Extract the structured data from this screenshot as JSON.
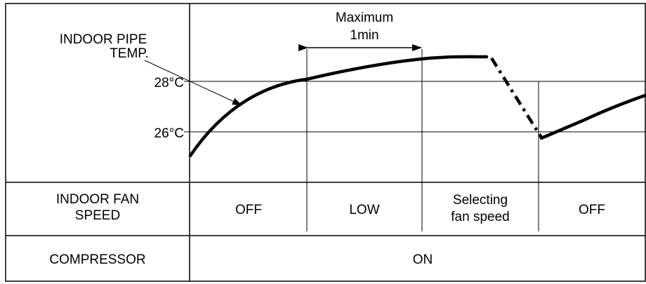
{
  "graph": {
    "pipe_temp_label_line1": "INDOOR PIPE",
    "pipe_temp_label_line2": "TEMP.",
    "temp_28": "28°C",
    "temp_26": "26°C",
    "max_label_line1": "Maximum",
    "max_label_line2": "1min"
  },
  "fan_row": {
    "label_line1": "INDOOR FAN",
    "label_line2": "SPEED",
    "states": [
      {
        "line1": "OFF",
        "line2": ""
      },
      {
        "line1": "LOW",
        "line2": ""
      },
      {
        "line1": "Selecting",
        "line2": "fan speed"
      },
      {
        "line1": "OFF",
        "line2": ""
      }
    ]
  },
  "compressor_row": {
    "label": "COMPRESSOR",
    "state": "ON"
  }
}
